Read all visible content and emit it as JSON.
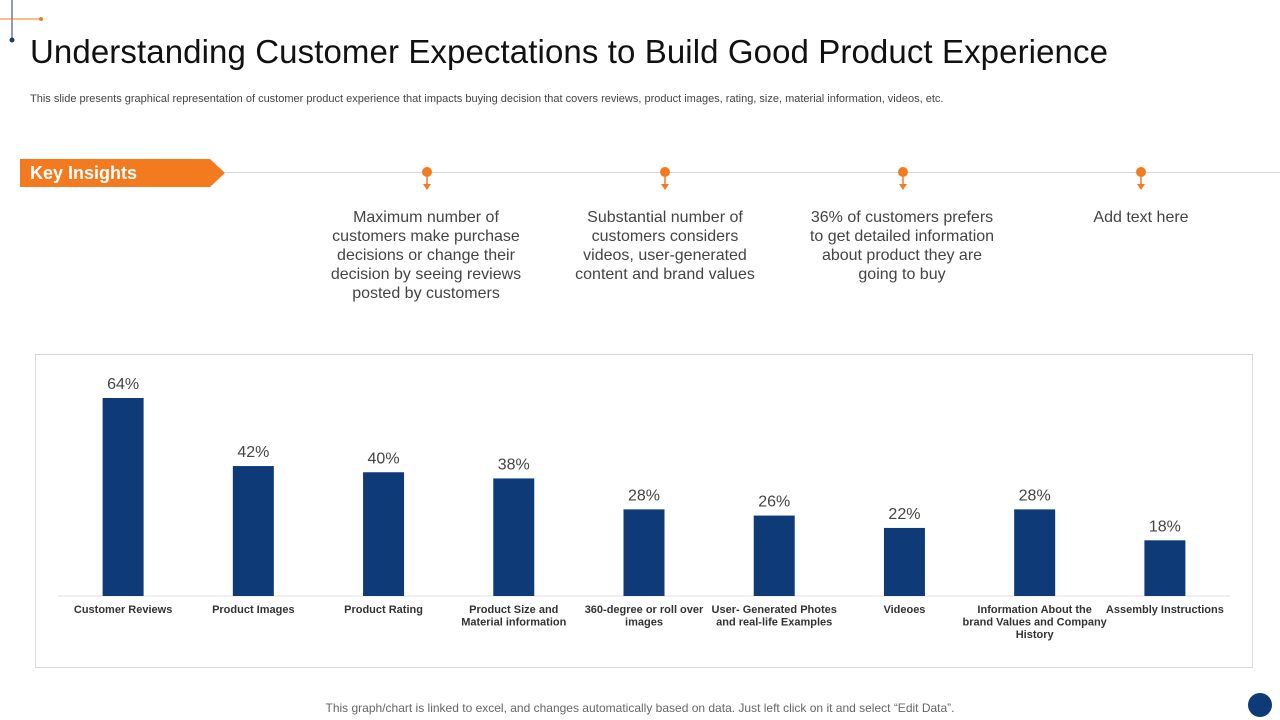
{
  "title": "Understanding Customer Expectations to Build Good Product Experience",
  "subtitle": "This slide presents graphical representation of customer product experience that impacts buying decision that covers reviews, product images, rating, size, material information, videos, etc.",
  "key_insights_label": "Key Insights",
  "insights": [
    "Maximum number of customers make purchase decisions or change their decision by seeing reviews posted by customers",
    "Substantial number of customers considers videos, user-generated content and brand values",
    "36% of customers prefers to get detailed information about product they are going to buy",
    "Add text here"
  ],
  "footer_note": "This graph/chart is linked to excel,  and changes automatically based on data. Just left click on it and select “Edit Data”.",
  "colors": {
    "accent": "#f47a1f",
    "bar": "#0f3a78",
    "text": "#333333"
  },
  "chart_data": {
    "type": "bar",
    "categories": [
      "Customer Reviews",
      "Product Images",
      "Product  Rating",
      "Product Size and Material information",
      "360-degree or roll over images",
      "User- Generated Photes and  real-life Examples",
      "Videoes",
      "Information About the brand Values and Company History",
      "Assembly Instructions"
    ],
    "values": [
      64,
      42,
      40,
      38,
      28,
      26,
      22,
      28,
      18
    ],
    "value_labels": [
      "64%",
      "42%",
      "40%",
      "38%",
      "28%",
      "26%",
      "22%",
      "28%",
      "18%"
    ],
    "ylim": [
      0,
      64
    ],
    "grid": false,
    "legend": "none"
  }
}
